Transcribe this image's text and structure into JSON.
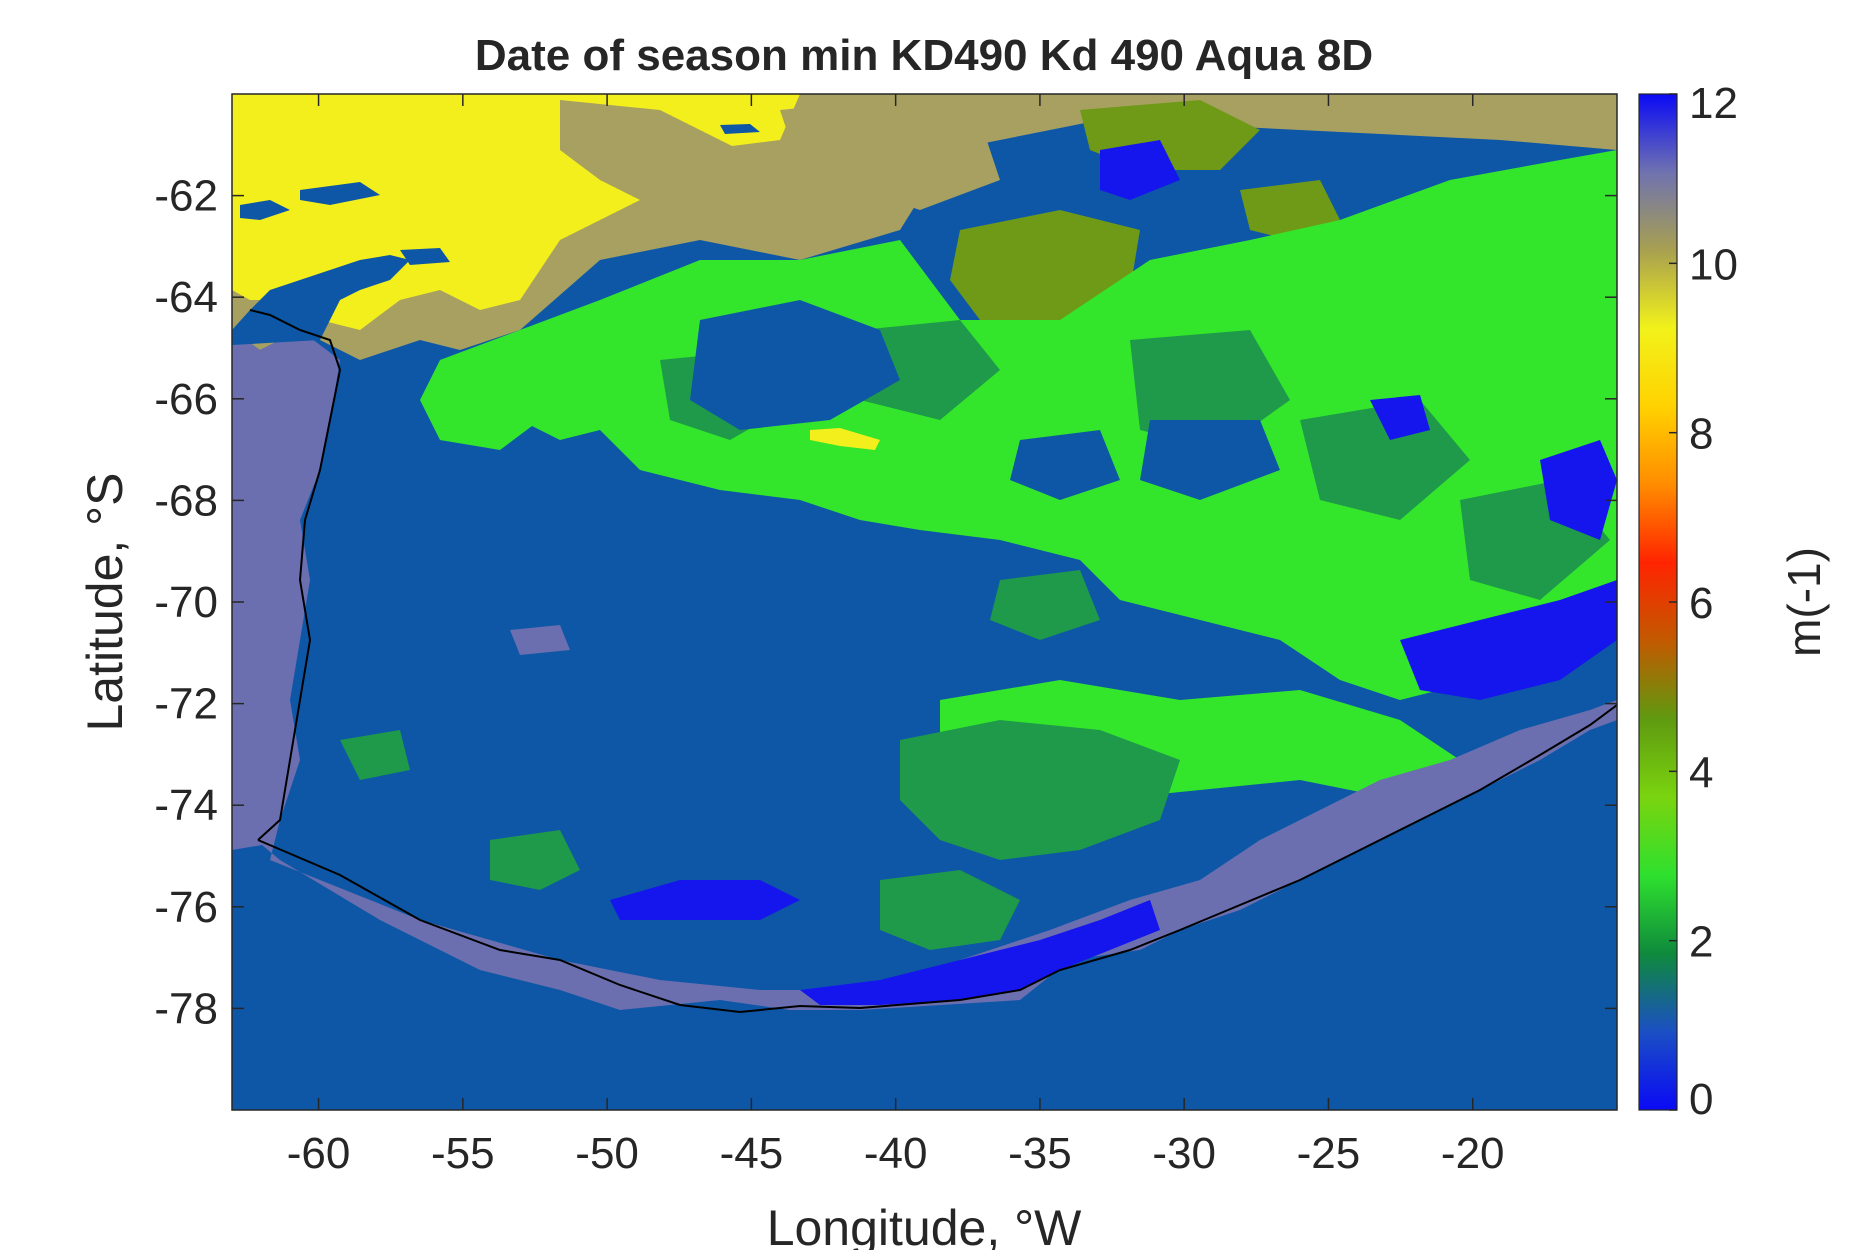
{
  "title": "Date of season min KD490 Kd 490 Aqua 8D",
  "xlabel": "Longitude, °W",
  "ylabel": "Latitude, °S",
  "x_axis": {
    "range": [
      -63,
      -15
    ],
    "ticks": [
      -60,
      -55,
      -50,
      -45,
      -40,
      -35,
      -30,
      -25,
      -20
    ],
    "tick_labels": [
      "-60",
      "-55",
      "-50",
      "-45",
      "-40",
      "-35",
      "-30",
      "-25",
      "-20"
    ]
  },
  "y_axis": {
    "range": [
      -80,
      -60
    ],
    "ticks": [
      -62,
      -64,
      -66,
      -68,
      -70,
      -72,
      -74,
      -76,
      -78
    ],
    "tick_labels": [
      "-62",
      "-64",
      "-66",
      "-68",
      "-70",
      "-72",
      "-74",
      "-76",
      "-78"
    ]
  },
  "colorbar": {
    "label": "m(-1)",
    "range": [
      0,
      12
    ],
    "ticks": [
      0,
      2,
      4,
      6,
      8,
      10,
      12
    ],
    "tick_labels": [
      "0",
      "2",
      "4",
      "6",
      "8",
      "10",
      "12"
    ],
    "colors": [
      "#0a0af5",
      "#1b4fc4",
      "#0f8a3c",
      "#2ee02e",
      "#7ad40f",
      "#5f9a10",
      "#c25a00",
      "#ff2400",
      "#ff8c00",
      "#ffd200",
      "#f2f21a",
      "#a8a050",
      "#6f72b0",
      "#0a0af5"
    ]
  },
  "map_colors": {
    "ocean": "#0d57a6",
    "lavender": "#6b6fb0",
    "green_dark": "#1e9a4a",
    "green_bright": "#33e62b",
    "blue_bright": "#1515ee",
    "olive": "#a8a060",
    "olive_dark": "#6e9a18",
    "yellow": "#f2ef1c",
    "coast": "#000000"
  }
}
